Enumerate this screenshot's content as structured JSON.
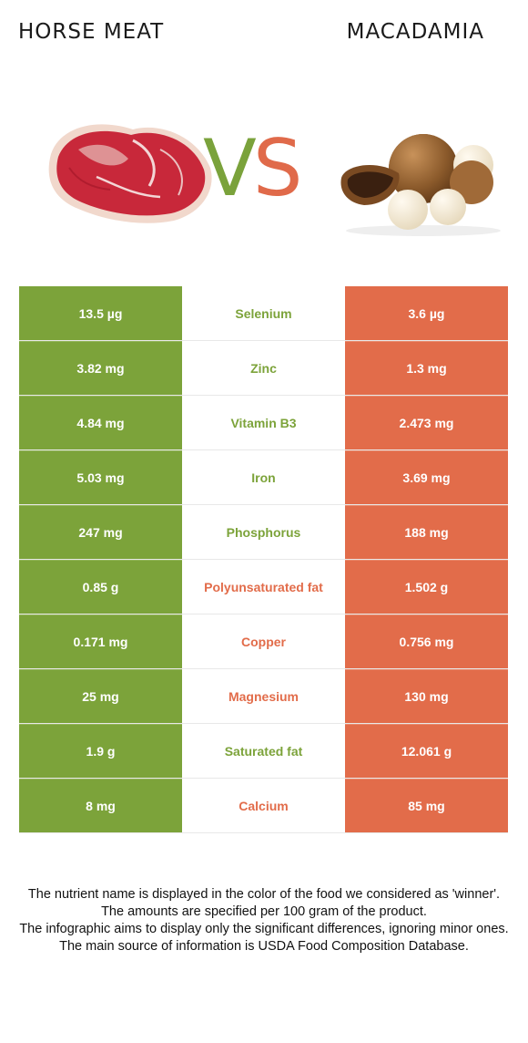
{
  "header": {
    "left_food": "HORSE MEAT",
    "right_food": "MACADAMIA",
    "vs_v": "V",
    "vs_s": "S"
  },
  "colors": {
    "left_winner": "#7ca33a",
    "right_winner": "#e26c4a"
  },
  "rows": [
    {
      "left": "13.5 µg",
      "nutrient": "Selenium",
      "right": "3.6 µg",
      "winner": "left"
    },
    {
      "left": "3.82 mg",
      "nutrient": "Zinc",
      "right": "1.3 mg",
      "winner": "left"
    },
    {
      "left": "4.84 mg",
      "nutrient": "Vitamin B3",
      "right": "2.473 mg",
      "winner": "left"
    },
    {
      "left": "5.03 mg",
      "nutrient": "Iron",
      "right": "3.69 mg",
      "winner": "left"
    },
    {
      "left": "247 mg",
      "nutrient": "Phosphorus",
      "right": "188 mg",
      "winner": "left"
    },
    {
      "left": "0.85 g",
      "nutrient": "Polyunsaturated fat",
      "right": "1.502 g",
      "winner": "right"
    },
    {
      "left": "0.171 mg",
      "nutrient": "Copper",
      "right": "0.756 mg",
      "winner": "right"
    },
    {
      "left": "25 mg",
      "nutrient": "Magnesium",
      "right": "130 mg",
      "winner": "right"
    },
    {
      "left": "1.9 g",
      "nutrient": "Saturated fat",
      "right": "12.061 g",
      "winner": "left"
    },
    {
      "left": "8 mg",
      "nutrient": "Calcium",
      "right": "85 mg",
      "winner": "right"
    }
  ],
  "footer": {
    "line1": "The nutrient name is displayed in the color of the food we considered as 'winner'.",
    "line2": "The amounts are specified per 100 gram of the product.",
    "line3": "The infographic aims to display only the significant differences, ignoring minor ones.",
    "line4": "The main source of information is USDA Food Composition Database."
  }
}
